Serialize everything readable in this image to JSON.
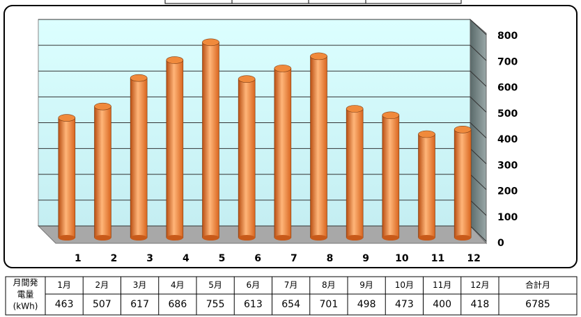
{
  "chart_data": {
    "type": "bar",
    "categories": [
      "1",
      "2",
      "3",
      "4",
      "5",
      "6",
      "7",
      "8",
      "9",
      "10",
      "11",
      "12"
    ],
    "values": [
      463,
      507,
      617,
      686,
      755,
      613,
      654,
      701,
      498,
      473,
      400,
      418
    ],
    "color": "#f08a3c",
    "ylim": [
      0,
      800
    ],
    "yticks": [
      0,
      100,
      200,
      300,
      400,
      500,
      600,
      700,
      800
    ],
    "grid": true
  },
  "table": {
    "row_header": [
      "月間発",
      "電量",
      "(kWh)"
    ],
    "headers": [
      "1月",
      "2月",
      "3月",
      "4月",
      "5月",
      "6月",
      "7月",
      "8月",
      "9月",
      "10月",
      "11月",
      "12月"
    ],
    "total_header": "合計月",
    "total": 6785
  }
}
